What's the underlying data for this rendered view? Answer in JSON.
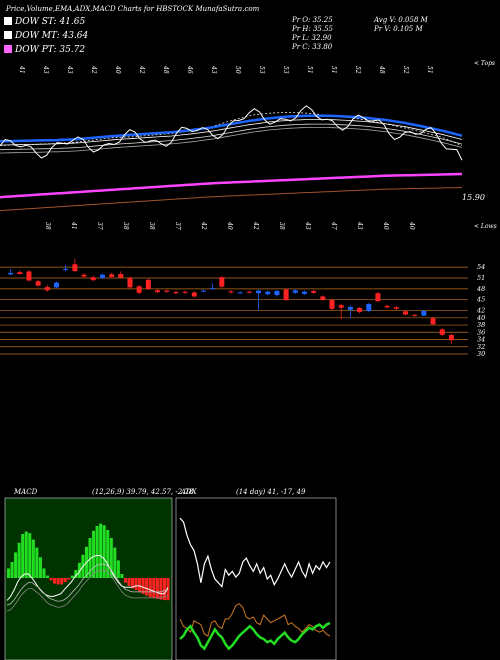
{
  "header": {
    "title": "Price,Volume,EMA,ADX,MACD Charts for HBSTOCK MunafaSutra.com"
  },
  "legend": [
    {
      "label": "DOW ST: 41.65",
      "color": "#ffffff"
    },
    {
      "label": "DOW MT: 43.64",
      "color": "#ffffff"
    },
    {
      "label": "DOW PT: 35.72",
      "color": "#ff66ff"
    }
  ],
  "stats": {
    "pr_open": "Pr   O: 35.25",
    "pr_high": "Pr   H: 35.55",
    "pr_low": "Pr   L: 32.90",
    "pr_close": "Pr   C: 33.80",
    "avg_volume": "Avg V: 0.058  M",
    "pr_volume": "Pr   V: 0.105 M"
  },
  "labels": {
    "tops": "< Tops",
    "lows": "< Lows",
    "last_low": "15.90"
  },
  "top_peak_labels": [
    "41",
    "43",
    "43",
    "42",
    "40",
    "42",
    "48",
    "46",
    "43",
    "50",
    "53",
    "53",
    "51",
    "51",
    "52",
    "48",
    "52",
    "51"
  ],
  "low_dip_labels": [
    "38",
    "41",
    "37",
    "38",
    "38",
    "37",
    "42",
    "40",
    "42",
    "38",
    "43",
    "47",
    "43",
    "40",
    "40"
  ],
  "price_ticks": [
    "54",
    "51",
    "48",
    "45",
    "42",
    "40",
    "38",
    "36",
    "34",
    "32",
    "30"
  ],
  "colors": {
    "ema_blue": "#1e64ff",
    "ema_pink": "#ff44ff",
    "ema_brown": "#a0522d",
    "bull": "#1e64ff",
    "bear": "#ff2222",
    "grid": "#c07020",
    "macd_green": "#22dd22",
    "macd_red": "#ff2222"
  },
  "chart_data": [
    {
      "type": "line",
      "title": "Price, Volume, EMA",
      "series": [
        {
          "name": "DOW ST",
          "values": [
            41.7,
            41.9,
            42.0,
            42.2,
            42.5,
            43.1,
            43.6,
            43.8,
            44.2,
            44.6,
            45.2,
            46.2,
            47.6,
            48.9,
            49.4,
            49.6,
            49.4,
            48.9,
            48.4,
            47.8,
            46.9,
            45.9,
            44.8,
            43.6,
            41.65
          ]
        },
        {
          "name": "DOW MT",
          "values": [
            42.3,
            42.4,
            42.5,
            42.6,
            42.8,
            43.2,
            43.6,
            43.9,
            44.2,
            44.5,
            45.0,
            45.6,
            46.4,
            47.2,
            47.8,
            48.2,
            48.4,
            48.4,
            48.2,
            47.9,
            47.4,
            46.7,
            45.8,
            44.8,
            43.64
          ]
        },
        {
          "name": "DOW PT",
          "values": [
            30.2,
            30.5,
            30.8,
            31.1,
            31.4,
            31.7,
            32.0,
            32.3,
            32.6,
            32.9,
            33.2,
            33.5,
            33.7,
            33.9,
            34.1,
            34.3,
            34.5,
            34.7,
            34.9,
            35.1,
            35.3,
            35.4,
            35.5,
            35.6,
            35.72
          ]
        }
      ],
      "ylim": [
        15.9,
        55
      ]
    },
    {
      "type": "candlestick",
      "title": "Daily price bars",
      "ticks": [
        54,
        51,
        48,
        45,
        42,
        40,
        38,
        36,
        34,
        32,
        30
      ],
      "ylim": [
        29,
        56
      ],
      "candles": [
        {
          "o": 52.0,
          "c": 52.4,
          "h": 53.4,
          "l": 51.8
        },
        {
          "o": 52.6,
          "c": 52.1,
          "h": 53.1,
          "l": 51.9
        },
        {
          "o": 52.8,
          "c": 50.3,
          "h": 53.2,
          "l": 50.1
        },
        {
          "o": 50.1,
          "c": 48.9,
          "h": 50.5,
          "l": 48.6
        },
        {
          "o": 48.5,
          "c": 47.6,
          "h": 49.0,
          "l": 47.2
        },
        {
          "o": 48.4,
          "c": 49.7,
          "h": 50.1,
          "l": 48.2
        },
        {
          "o": 53.2,
          "c": 53.5,
          "h": 54.6,
          "l": 52.8
        },
        {
          "o": 54.8,
          "c": 52.9,
          "h": 56.2,
          "l": 52.6
        },
        {
          "o": 51.9,
          "c": 51.4,
          "h": 52.3,
          "l": 51.0
        },
        {
          "o": 51.2,
          "c": 50.4,
          "h": 51.6,
          "l": 50.1
        },
        {
          "o": 51.0,
          "c": 51.9,
          "h": 52.3,
          "l": 50.8
        },
        {
          "o": 52.0,
          "c": 51.3,
          "h": 52.4,
          "l": 51.0
        },
        {
          "o": 52.1,
          "c": 51.1,
          "h": 52.8,
          "l": 50.8
        },
        {
          "o": 51.0,
          "c": 48.4,
          "h": 51.4,
          "l": 48.1
        },
        {
          "o": 48.7,
          "c": 46.9,
          "h": 49.1,
          "l": 46.5
        },
        {
          "o": 50.5,
          "c": 48.0,
          "h": 50.8,
          "l": 47.6
        },
        {
          "o": 47.6,
          "c": 47.1,
          "h": 48.0,
          "l": 46.8
        },
        {
          "o": 47.5,
          "c": 47.2,
          "h": 47.9,
          "l": 46.9
        },
        {
          "o": 47.1,
          "c": 46.8,
          "h": 47.5,
          "l": 46.5
        },
        {
          "o": 47.2,
          "c": 46.9,
          "h": 47.5,
          "l": 46.6
        },
        {
          "o": 47.0,
          "c": 45.9,
          "h": 47.3,
          "l": 45.6
        },
        {
          "o": 47.4,
          "c": 47.5,
          "h": 47.9,
          "l": 47.1
        },
        {
          "o": 48.0,
          "c": 48.2,
          "h": 49.5,
          "l": 47.8
        },
        {
          "o": 51.2,
          "c": 48.6,
          "h": 51.5,
          "l": 48.3
        },
        {
          "o": 47.3,
          "c": 47.0,
          "h": 47.6,
          "l": 46.7
        },
        {
          "o": 46.9,
          "c": 47.0,
          "h": 47.3,
          "l": 46.7
        },
        {
          "o": 47.2,
          "c": 47.0,
          "h": 47.6,
          "l": 46.8
        },
        {
          "o": 46.8,
          "c": 47.5,
          "h": 47.8,
          "l": 42.1
        },
        {
          "o": 46.5,
          "c": 47.2,
          "h": 47.6,
          "l": 46.2
        },
        {
          "o": 46.3,
          "c": 47.4,
          "h": 47.7,
          "l": 45.9
        },
        {
          "o": 47.8,
          "c": 44.9,
          "h": 48.2,
          "l": 44.6
        },
        {
          "o": 46.9,
          "c": 47.6,
          "h": 48.0,
          "l": 46.6
        },
        {
          "o": 46.6,
          "c": 47.2,
          "h": 47.5,
          "l": 46.3
        },
        {
          "o": 47.4,
          "c": 46.9,
          "h": 47.8,
          "l": 46.6
        },
        {
          "o": 45.9,
          "c": 45.0,
          "h": 46.2,
          "l": 44.7
        },
        {
          "o": 44.9,
          "c": 42.5,
          "h": 45.2,
          "l": 42.1
        },
        {
          "o": 43.5,
          "c": 42.8,
          "h": 43.9,
          "l": 39.6
        },
        {
          "o": 42.2,
          "c": 43.0,
          "h": 43.4,
          "l": 40.1
        },
        {
          "o": 42.7,
          "c": 41.6,
          "h": 43.0,
          "l": 41.3
        },
        {
          "o": 41.9,
          "c": 43.8,
          "h": 44.1,
          "l": 41.5
        },
        {
          "o": 46.8,
          "c": 44.6,
          "h": 47.1,
          "l": 44.3
        },
        {
          "o": 43.3,
          "c": 42.9,
          "h": 43.6,
          "l": 42.6
        },
        {
          "o": 42.9,
          "c": 42.5,
          "h": 43.3,
          "l": 42.2
        },
        {
          "o": 41.8,
          "c": 40.9,
          "h": 42.1,
          "l": 40.6
        },
        {
          "o": 40.8,
          "c": 40.6,
          "h": 41.1,
          "l": 40.3
        },
        {
          "o": 40.6,
          "c": 41.9,
          "h": 42.2,
          "l": 40.4
        },
        {
          "o": 39.9,
          "c": 38.2,
          "h": 40.3,
          "l": 37.9
        },
        {
          "o": 36.8,
          "c": 35.3,
          "h": 37.1,
          "l": 35.0
        },
        {
          "o": 35.25,
          "c": 33.8,
          "h": 35.55,
          "l": 32.9
        }
      ]
    },
    {
      "type": "bar",
      "title": "MACD",
      "caption": "MACD",
      "params": "(12,26,9) 39.79, 42.57, -2.78",
      "histogram": [
        1.2,
        2.0,
        3.2,
        4.4,
        5.5,
        5.8,
        5.6,
        4.8,
        3.8,
        2.6,
        1.2,
        0.3,
        -0.3,
        -0.7,
        -0.8,
        -0.8,
        -0.5,
        -0.2,
        0.3,
        1.0,
        1.9,
        2.9,
        3.9,
        5.0,
        5.9,
        6.5,
        6.8,
        6.6,
        6.0,
        5.0,
        3.8,
        2.2,
        0.5,
        -0.6,
        -1.0,
        -1.3,
        -1.5,
        -1.8,
        -2.0,
        -2.2,
        -2.4,
        -2.5,
        -2.6,
        -2.7,
        -2.75,
        -2.78
      ],
      "macd": [
        30,
        33,
        38,
        44,
        48,
        50,
        50,
        47,
        43,
        39,
        36,
        34,
        33,
        33,
        34,
        35,
        38,
        41,
        44,
        48,
        51,
        55,
        58,
        61,
        63,
        64,
        64,
        62,
        58,
        53,
        48,
        44,
        41,
        40,
        40,
        40,
        41,
        41,
        40,
        39,
        38,
        37,
        36,
        35,
        35,
        39.79
      ],
      "signal": [
        31,
        32,
        35,
        39,
        43,
        46,
        48,
        48,
        46,
        44,
        41,
        38,
        36,
        35,
        34,
        34,
        35,
        37,
        40,
        43,
        46,
        50,
        53,
        56,
        59,
        61,
        62,
        62,
        61,
        58,
        54,
        50,
        46,
        43,
        42,
        41,
        41,
        41,
        41,
        41,
        41,
        41,
        41,
        41,
        42,
        42.57
      ],
      "ylim": [
        -12,
        82
      ]
    },
    {
      "type": "line",
      "title": "ADX",
      "caption": "ADX",
      "params": "(14 day) 41, -17, 49",
      "series": [
        {
          "name": "+DI",
          "values": [
            72,
            70,
            63,
            58,
            55,
            48,
            38,
            48,
            52,
            45,
            40,
            38,
            36,
            45,
            42,
            44,
            41,
            43,
            49,
            51,
            47,
            44,
            48,
            43,
            46,
            40,
            42,
            37,
            40,
            44,
            48,
            44,
            41,
            45,
            49,
            44,
            41,
            48,
            43,
            47,
            45,
            49,
            46,
            49
          ]
        },
        {
          "name": "-DI",
          "values": [
            18,
            20,
            24,
            26,
            22,
            19,
            14,
            12,
            16,
            20,
            24,
            21,
            19,
            15,
            12,
            14,
            17,
            20,
            22,
            24,
            26,
            24,
            21,
            19,
            18,
            16,
            17,
            15,
            18,
            20,
            22,
            19,
            17,
            16,
            18,
            21,
            23,
            25,
            24,
            26,
            27,
            25,
            27,
            28
          ]
        },
        {
          "name": "ADX",
          "values": [
            19,
            15,
            14,
            12,
            18,
            17,
            16,
            11,
            10,
            17,
            18,
            15,
            14,
            19,
            19,
            22,
            26,
            27,
            25,
            20,
            19,
            20,
            17,
            16,
            21,
            19,
            17,
            18,
            19,
            20,
            21,
            16,
            17,
            15,
            14,
            12,
            14,
            16,
            15,
            13,
            12,
            13,
            11,
            10
          ]
        }
      ],
      "ylim": [
        0,
        82
      ]
    }
  ]
}
